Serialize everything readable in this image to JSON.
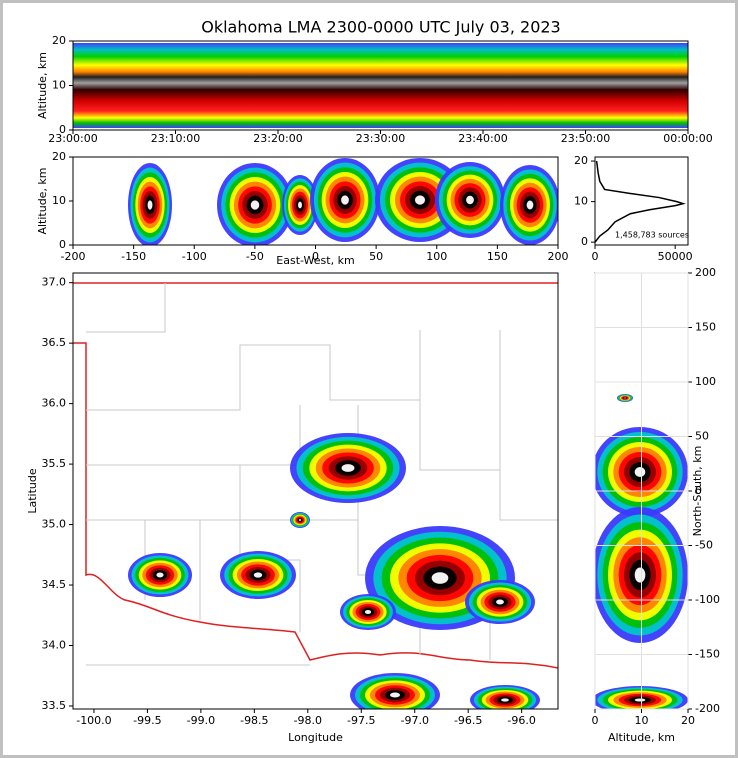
{
  "chart_data": [
    {
      "type": "density-time",
      "title": "Oklahoma LMA 2300-0000 UTC July 03, 2023",
      "ylabel": "Altitude, km",
      "categories": [
        "23:00:00",
        "23:10:00",
        "23:20:00",
        "23:30:00",
        "23:40:00",
        "23:50:00",
        "00:00:00"
      ],
      "ylim": [
        0,
        20
      ],
      "yticks": [
        0,
        10,
        20
      ]
    },
    {
      "type": "density",
      "xlabel": "East-West, km",
      "ylabel": "Altitude, km",
      "xlim": [
        -200,
        200
      ],
      "xticks": [
        -200,
        -150,
        -100,
        -50,
        0,
        50,
        100,
        150,
        200
      ],
      "ylim": [
        0,
        20
      ],
      "yticks": [
        0,
        10,
        20
      ]
    },
    {
      "type": "line",
      "annotation": "1,458,783 sources",
      "color": "#000000",
      "y": [
        0,
        1.5,
        3,
        5,
        7,
        8,
        9,
        9.5,
        10,
        11,
        12,
        13,
        15,
        17,
        20
      ],
      "values": [
        0,
        3000,
        8000,
        12500,
        22000,
        34000,
        50000,
        55000,
        51000,
        40000,
        22000,
        6000,
        3000,
        2000,
        1000
      ],
      "xlim": [
        0,
        58000
      ],
      "xticks": [
        0,
        50000
      ],
      "ylim": [
        -0.7,
        21
      ],
      "yticks": [
        0,
        10,
        20
      ]
    },
    {
      "type": "map",
      "xlabel": "Longitude",
      "ylabel": "Latitude",
      "xlim": [
        -100.196,
        -95.66
      ],
      "xticks": [
        {
          "value": -100,
          "label": "-100.0"
        },
        {
          "value": -99.5,
          "label": "-99.5"
        },
        {
          "value": -99,
          "label": "-99.0"
        },
        {
          "value": -98.5,
          "label": "-98.5"
        },
        {
          "value": -98,
          "label": "-98.0"
        },
        {
          "value": -97.5,
          "label": "-97.5"
        },
        {
          "value": -97,
          "label": "-97.0"
        },
        {
          "value": -96.5,
          "label": "-96.5"
        },
        {
          "value": -96,
          "label": "-96.0"
        }
      ],
      "ylim": [
        33.475,
        37.08
      ],
      "yticks": [
        {
          "value": 33.5,
          "label": "33.5"
        },
        {
          "value": 34,
          "label": "34.0"
        },
        {
          "value": 34.5,
          "label": "34.5"
        },
        {
          "value": 35,
          "label": "35.0"
        },
        {
          "value": 35.5,
          "label": "35.5"
        },
        {
          "value": 36,
          "label": "36.0"
        },
        {
          "value": 36.5,
          "label": "36.5"
        },
        {
          "value": 37,
          "label": "37.0"
        }
      ]
    },
    {
      "type": "density",
      "xlabel": "Altitude, km",
      "ylabel": "North-South, km",
      "xlim": [
        0,
        20
      ],
      "xticks": [
        0,
        10,
        20
      ],
      "ylim": [
        -200,
        200
      ],
      "yticks": [
        -200,
        -150,
        -100,
        -50,
        0,
        50,
        100,
        150,
        200
      ],
      "yaxis_side": "right"
    }
  ]
}
